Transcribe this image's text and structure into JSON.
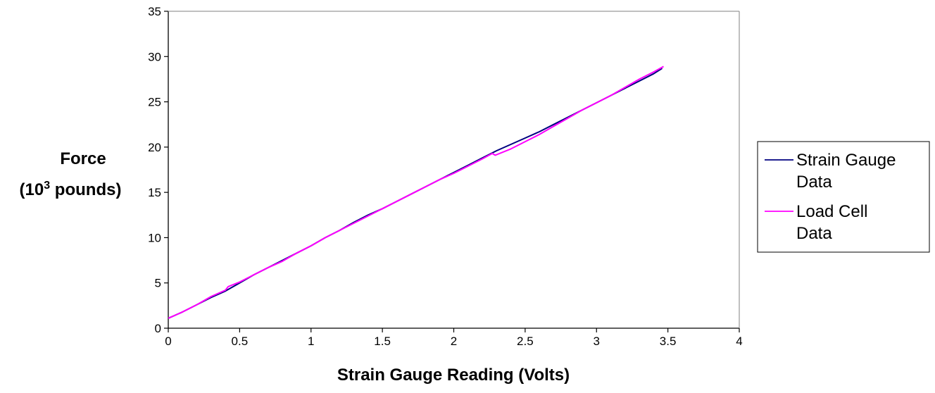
{
  "chart_data": {
    "type": "line",
    "title": "",
    "xlabel": "Strain Gauge Reading (Volts)",
    "ylabel": {
      "line1": "Force",
      "line2_prefix": "(10",
      "line2_superscript": "3",
      "line2_suffix": " pounds)"
    },
    "xlim": [
      0,
      4
    ],
    "ylim": [
      0,
      35
    ],
    "xticks": [
      0,
      0.5,
      1,
      1.5,
      2,
      2.5,
      3,
      3.5,
      4
    ],
    "xtick_labels": [
      "0",
      "0.5",
      "1",
      "1.5",
      "2",
      "2.5",
      "3",
      "3.5",
      "4"
    ],
    "yticks": [
      0,
      5,
      10,
      15,
      20,
      25,
      30,
      35
    ],
    "ytick_labels": [
      "0",
      "5",
      "10",
      "15",
      "20",
      "25",
      "30",
      "35"
    ],
    "grid": false,
    "legend_position": "right",
    "series": [
      {
        "name": "Strain Gauge Data",
        "legend_lines": [
          "Strain Gauge",
          "Data"
        ],
        "color": "#000080",
        "points": [
          [
            0,
            1.1
          ],
          [
            0.1,
            1.8
          ],
          [
            0.2,
            2.6
          ],
          [
            0.3,
            3.4
          ],
          [
            0.4,
            4.1
          ],
          [
            0.5,
            5.0
          ],
          [
            0.6,
            5.9
          ],
          [
            0.7,
            6.7
          ],
          [
            0.8,
            7.5
          ],
          [
            0.9,
            8.3
          ],
          [
            1.0,
            9.1
          ],
          [
            1.1,
            10.0
          ],
          [
            1.2,
            10.8
          ],
          [
            1.3,
            11.7
          ],
          [
            1.4,
            12.5
          ],
          [
            1.5,
            13.2
          ],
          [
            1.6,
            14.0
          ],
          [
            1.7,
            14.8
          ],
          [
            1.8,
            15.6
          ],
          [
            1.9,
            16.4
          ],
          [
            2.0,
            17.2
          ],
          [
            2.1,
            18.0
          ],
          [
            2.2,
            18.8
          ],
          [
            2.3,
            19.6
          ],
          [
            2.4,
            20.3
          ],
          [
            2.5,
            21.0
          ],
          [
            2.6,
            21.7
          ],
          [
            2.7,
            22.5
          ],
          [
            2.8,
            23.3
          ],
          [
            2.9,
            24.1
          ],
          [
            3.0,
            24.9
          ],
          [
            3.1,
            25.7
          ],
          [
            3.2,
            26.5
          ],
          [
            3.3,
            27.3
          ],
          [
            3.4,
            28.1
          ],
          [
            3.46,
            28.7
          ]
        ]
      },
      {
        "name": "Load Cell Data",
        "legend_lines": [
          "Load Cell",
          "Data"
        ],
        "color": "#ff00ff",
        "points": [
          [
            0,
            1.1
          ],
          [
            0.1,
            1.8
          ],
          [
            0.2,
            2.6
          ],
          [
            0.3,
            3.5
          ],
          [
            0.4,
            4.2
          ],
          [
            0.42,
            4.6
          ],
          [
            0.5,
            5.1
          ],
          [
            0.6,
            5.9
          ],
          [
            0.7,
            6.7
          ],
          [
            0.8,
            7.4
          ],
          [
            0.9,
            8.3
          ],
          [
            1.0,
            9.1
          ],
          [
            1.1,
            10.0
          ],
          [
            1.2,
            10.8
          ],
          [
            1.3,
            11.6
          ],
          [
            1.4,
            12.4
          ],
          [
            1.5,
            13.2
          ],
          [
            1.6,
            14.0
          ],
          [
            1.7,
            14.8
          ],
          [
            1.8,
            15.6
          ],
          [
            1.9,
            16.4
          ],
          [
            2.0,
            17.1
          ],
          [
            2.1,
            17.9
          ],
          [
            2.2,
            18.7
          ],
          [
            2.27,
            19.3
          ],
          [
            2.29,
            19.1
          ],
          [
            2.4,
            19.8
          ],
          [
            2.5,
            20.6
          ],
          [
            2.6,
            21.4
          ],
          [
            2.7,
            22.3
          ],
          [
            2.8,
            23.2
          ],
          [
            2.9,
            24.1
          ],
          [
            3.0,
            24.9
          ],
          [
            3.1,
            25.7
          ],
          [
            3.2,
            26.6
          ],
          [
            3.3,
            27.5
          ],
          [
            3.4,
            28.3
          ],
          [
            3.47,
            28.9
          ]
        ]
      }
    ]
  }
}
